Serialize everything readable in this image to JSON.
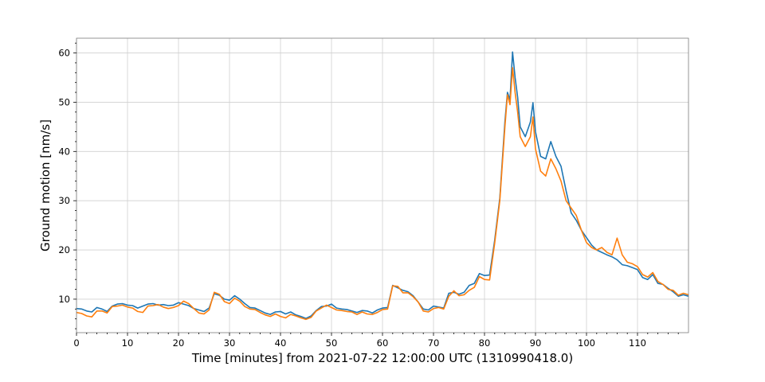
{
  "chart_data": {
    "type": "line",
    "title": "",
    "xlabel": "Time [minutes] from 2021-07-22 12:00:00 UTC (1310990418.0)",
    "ylabel": "Ground motion [nm/s]",
    "xlim": [
      0,
      120
    ],
    "ylim": [
      3.2,
      63
    ],
    "x_ticks": [
      0,
      10,
      20,
      30,
      40,
      50,
      60,
      70,
      80,
      90,
      100,
      110
    ],
    "x_tick_labels": [
      "0",
      "10",
      "20",
      "30",
      "40",
      "50",
      "60",
      "70",
      "80",
      "90",
      "100",
      "110"
    ],
    "y_ticks": [
      10,
      20,
      30,
      40,
      50,
      60
    ],
    "y_tick_labels": [
      "10",
      "20",
      "30",
      "40",
      "50",
      "60"
    ],
    "grid": true,
    "legend": "none",
    "series": [
      {
        "color": "#1f77b4",
        "points": [
          [
            0,
            8.1
          ],
          [
            1,
            8.0
          ],
          [
            2,
            7.6
          ],
          [
            3,
            7.4
          ],
          [
            4,
            8.3
          ],
          [
            5,
            8.0
          ],
          [
            6,
            7.5
          ],
          [
            7,
            8.6
          ],
          [
            8,
            9.0
          ],
          [
            9,
            9.1
          ],
          [
            10,
            8.8
          ],
          [
            11,
            8.7
          ],
          [
            12,
            8.2
          ],
          [
            13,
            8.6
          ],
          [
            14,
            9.0
          ],
          [
            15,
            9.1
          ],
          [
            16,
            8.8
          ],
          [
            17,
            8.9
          ],
          [
            18,
            8.7
          ],
          [
            19,
            8.8
          ],
          [
            20,
            9.3
          ],
          [
            21,
            9.0
          ],
          [
            22,
            8.7
          ],
          [
            23,
            8.1
          ],
          [
            24,
            7.8
          ],
          [
            25,
            7.5
          ],
          [
            26,
            8.2
          ],
          [
            27,
            11.1
          ],
          [
            28,
            10.8
          ],
          [
            29,
            10.0
          ],
          [
            30,
            9.8
          ],
          [
            31,
            10.7
          ],
          [
            32,
            10.0
          ],
          [
            33,
            9.1
          ],
          [
            34,
            8.3
          ],
          [
            35,
            8.2
          ],
          [
            36,
            7.7
          ],
          [
            37,
            7.2
          ],
          [
            38,
            6.9
          ],
          [
            39,
            7.4
          ],
          [
            40,
            7.5
          ],
          [
            41,
            7.0
          ],
          [
            42,
            7.4
          ],
          [
            43,
            6.8
          ],
          [
            44,
            6.5
          ],
          [
            45,
            6.1
          ],
          [
            46,
            6.6
          ],
          [
            47,
            7.7
          ],
          [
            48,
            8.5
          ],
          [
            49,
            8.6
          ],
          [
            50,
            9.0
          ],
          [
            51,
            8.2
          ],
          [
            52,
            8.0
          ],
          [
            53,
            7.9
          ],
          [
            54,
            7.6
          ],
          [
            55,
            7.3
          ],
          [
            56,
            7.7
          ],
          [
            57,
            7.6
          ],
          [
            58,
            7.2
          ],
          [
            59,
            7.8
          ],
          [
            60,
            8.2
          ],
          [
            61,
            8.3
          ],
          [
            62,
            12.8
          ],
          [
            63,
            12.3
          ],
          [
            64,
            11.8
          ],
          [
            65,
            11.5
          ],
          [
            66,
            10.7
          ],
          [
            67,
            9.4
          ],
          [
            68,
            8.0
          ],
          [
            69,
            7.8
          ],
          [
            70,
            8.6
          ],
          [
            71,
            8.4
          ],
          [
            72,
            8.2
          ],
          [
            73,
            11.2
          ],
          [
            74,
            11.4
          ],
          [
            75,
            11.0
          ],
          [
            76,
            11.4
          ],
          [
            77,
            12.8
          ],
          [
            78,
            13.2
          ],
          [
            79,
            15.2
          ],
          [
            80,
            14.8
          ],
          [
            81,
            14.9
          ],
          [
            82,
            22.0
          ],
          [
            83,
            30.5
          ],
          [
            84,
            46.0
          ],
          [
            84.5,
            52.0
          ],
          [
            85,
            50.5
          ],
          [
            85.5,
            60.2
          ],
          [
            86,
            55.0
          ],
          [
            86.5,
            51.0
          ],
          [
            87,
            45.0
          ],
          [
            88,
            43.0
          ],
          [
            89,
            46.0
          ],
          [
            89.5,
            49.9
          ],
          [
            90,
            44.0
          ],
          [
            91,
            39.0
          ],
          [
            92,
            38.5
          ],
          [
            93,
            42.0
          ],
          [
            94,
            39.0
          ],
          [
            95,
            37.0
          ],
          [
            96,
            32.0
          ],
          [
            97,
            27.5
          ],
          [
            98,
            26.0
          ],
          [
            99,
            24.0
          ],
          [
            100,
            22.5
          ],
          [
            101,
            21.0
          ],
          [
            102,
            20.0
          ],
          [
            103,
            19.5
          ],
          [
            104,
            19.0
          ],
          [
            105,
            18.6
          ],
          [
            106,
            18.0
          ],
          [
            107,
            17.0
          ],
          [
            108,
            16.8
          ],
          [
            109,
            16.4
          ],
          [
            110,
            16.0
          ],
          [
            111,
            14.4
          ],
          [
            112,
            14.0
          ],
          [
            113,
            15.0
          ],
          [
            114,
            13.2
          ],
          [
            115,
            13.0
          ],
          [
            116,
            12.2
          ],
          [
            117,
            11.5
          ],
          [
            118,
            10.6
          ],
          [
            119,
            10.9
          ],
          [
            120,
            10.6
          ]
        ]
      },
      {
        "color": "#ff7f0e",
        "points": [
          [
            0,
            7.3
          ],
          [
            1,
            7.1
          ],
          [
            2,
            6.6
          ],
          [
            3,
            6.4
          ],
          [
            4,
            7.6
          ],
          [
            5,
            7.6
          ],
          [
            6,
            7.2
          ],
          [
            7,
            8.5
          ],
          [
            8,
            8.6
          ],
          [
            9,
            8.8
          ],
          [
            10,
            8.4
          ],
          [
            11,
            8.2
          ],
          [
            12,
            7.5
          ],
          [
            13,
            7.3
          ],
          [
            14,
            8.6
          ],
          [
            15,
            8.7
          ],
          [
            16,
            8.9
          ],
          [
            17,
            8.4
          ],
          [
            18,
            8.1
          ],
          [
            19,
            8.3
          ],
          [
            20,
            8.7
          ],
          [
            21,
            9.6
          ],
          [
            22,
            9.1
          ],
          [
            23,
            8.1
          ],
          [
            24,
            7.2
          ],
          [
            25,
            7.0
          ],
          [
            26,
            7.8
          ],
          [
            27,
            11.4
          ],
          [
            28,
            11.0
          ],
          [
            29,
            9.5
          ],
          [
            30,
            9.1
          ],
          [
            31,
            10.2
          ],
          [
            32,
            9.6
          ],
          [
            33,
            8.5
          ],
          [
            34,
            8.0
          ],
          [
            35,
            7.9
          ],
          [
            36,
            7.3
          ],
          [
            37,
            6.8
          ],
          [
            38,
            6.5
          ],
          [
            39,
            7.0
          ],
          [
            40,
            6.5
          ],
          [
            41,
            6.2
          ],
          [
            42,
            6.9
          ],
          [
            43,
            6.6
          ],
          [
            44,
            6.2
          ],
          [
            45,
            5.9
          ],
          [
            46,
            6.3
          ],
          [
            47,
            7.6
          ],
          [
            48,
            8.2
          ],
          [
            49,
            8.8
          ],
          [
            50,
            8.3
          ],
          [
            51,
            7.8
          ],
          [
            52,
            7.7
          ],
          [
            53,
            7.5
          ],
          [
            54,
            7.4
          ],
          [
            55,
            6.9
          ],
          [
            56,
            7.4
          ],
          [
            57,
            7.0
          ],
          [
            58,
            6.9
          ],
          [
            59,
            7.3
          ],
          [
            60,
            7.9
          ],
          [
            61,
            8.0
          ],
          [
            62,
            12.7
          ],
          [
            63,
            12.6
          ],
          [
            64,
            11.3
          ],
          [
            65,
            11.3
          ],
          [
            66,
            10.5
          ],
          [
            67,
            9.4
          ],
          [
            68,
            7.6
          ],
          [
            69,
            7.4
          ],
          [
            70,
            8.1
          ],
          [
            71,
            8.3
          ],
          [
            72,
            8.0
          ],
          [
            73,
            10.6
          ],
          [
            74,
            11.7
          ],
          [
            75,
            10.7
          ],
          [
            76,
            10.9
          ],
          [
            77,
            11.8
          ],
          [
            78,
            12.4
          ],
          [
            79,
            14.6
          ],
          [
            80,
            14.0
          ],
          [
            81,
            13.9
          ],
          [
            82,
            21.4
          ],
          [
            83,
            30.0
          ],
          [
            84,
            45.0
          ],
          [
            84.5,
            51.5
          ],
          [
            85,
            49.5
          ],
          [
            85.5,
            57.0
          ],
          [
            86,
            52.0
          ],
          [
            86.5,
            48.0
          ],
          [
            87,
            43.0
          ],
          [
            88,
            41.0
          ],
          [
            89,
            43.0
          ],
          [
            89.5,
            47.0
          ],
          [
            90,
            40.5
          ],
          [
            91,
            36.0
          ],
          [
            92,
            35.0
          ],
          [
            93,
            38.5
          ],
          [
            94,
            36.5
          ],
          [
            95,
            34.0
          ],
          [
            96,
            30.0
          ],
          [
            97,
            28.5
          ],
          [
            98,
            27.0
          ],
          [
            99,
            24.0
          ],
          [
            100,
            21.5
          ],
          [
            101,
            20.5
          ],
          [
            102,
            20.0
          ],
          [
            103,
            20.5
          ],
          [
            104,
            19.5
          ],
          [
            105,
            19.0
          ],
          [
            106,
            22.4
          ],
          [
            107,
            19.0
          ],
          [
            108,
            17.5
          ],
          [
            109,
            17.2
          ],
          [
            110,
            16.6
          ],
          [
            111,
            15.0
          ],
          [
            112,
            14.5
          ],
          [
            113,
            15.4
          ],
          [
            114,
            13.6
          ],
          [
            115,
            13.0
          ],
          [
            116,
            12.0
          ],
          [
            117,
            11.8
          ],
          [
            118,
            10.8
          ],
          [
            119,
            11.2
          ],
          [
            120,
            10.9
          ]
        ]
      }
    ]
  }
}
